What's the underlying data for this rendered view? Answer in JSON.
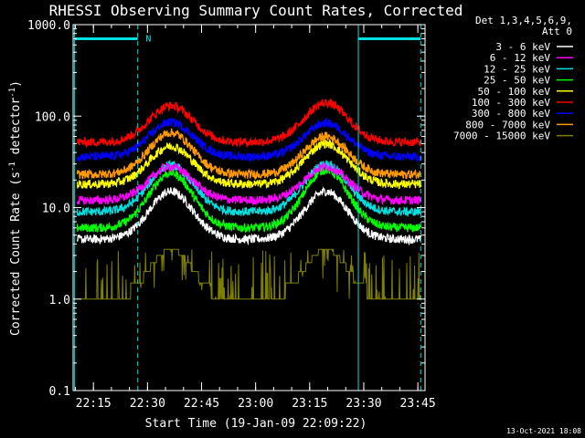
{
  "chart_data": {
    "type": "line",
    "title": "RHESSI Observing Summary Count Rates, Corrected",
    "xlabel": "Start Time (19-Jan-09 22:09:22)",
    "ylabel_main": "Corrected Count Rate (s",
    "ylabel_exp1": "-1",
    "ylabel_mid": " detector",
    "ylabel_exp2": "-1",
    "ylabel_end": ")",
    "x_units": "minutes from 22:00 UT",
    "xlim": [
      9.37,
      107
    ],
    "ylim": [
      0.1,
      1000
    ],
    "y_scale": "log",
    "x_ticks": [
      {
        "value": 15,
        "label": "22:15"
      },
      {
        "value": 30,
        "label": "22:30"
      },
      {
        "value": 45,
        "label": "22:45"
      },
      {
        "value": 60,
        "label": "23:00"
      },
      {
        "value": 75,
        "label": "23:15"
      },
      {
        "value": 90,
        "label": "23:30"
      },
      {
        "value": 105,
        "label": "23:45"
      }
    ],
    "y_ticks": [
      {
        "value": 0.1,
        "label": "0.1"
      },
      {
        "value": 1,
        "label": "1.0"
      },
      {
        "value": 10,
        "label": "10.0"
      },
      {
        "value": 100,
        "label": "100.0"
      },
      {
        "value": 1000,
        "label": "1000.0"
      }
    ],
    "legend_header": [
      "Det 1,3,4,5,6,9,",
      "Att 0"
    ],
    "legend_position": "right",
    "night_markers": {
      "boundaries": [
        9.8,
        27.3,
        88.5,
        105.8
      ],
      "bars": [
        [
          9.8,
          27.3
        ],
        [
          88.5,
          105.8
        ]
      ],
      "bar_level": 700,
      "label": "N",
      "label_x": 29.5
    },
    "series": [
      {
        "name": "3 - 6 keV",
        "color": "#ffffff",
        "base": 4.5,
        "peak1": 15,
        "peak2": 15
      },
      {
        "name": "6 - 12 keV",
        "color": "#ff00ff",
        "base": 12,
        "peak1": 28,
        "peak2": 28
      },
      {
        "name": "12 - 25 keV",
        "color": "#00e0e0",
        "base": 9,
        "peak1": 29,
        "peak2": 30
      },
      {
        "name": "25 - 50 keV",
        "color": "#00ff00",
        "base": 6,
        "peak1": 24,
        "peak2": 26
      },
      {
        "name": "50 - 100 keV",
        "color": "#ffff00",
        "base": 18,
        "peak1": 47,
        "peak2": 50
      },
      {
        "name": "100 - 300 keV",
        "color": "#ff0000",
        "base": 52,
        "peak1": 130,
        "peak2": 140
      },
      {
        "name": "300 - 800 keV",
        "color": "#0000ff",
        "base": 36,
        "peak1": 86,
        "peak2": 84
      },
      {
        "name": "800 - 7000 keV",
        "color": "#ff9900",
        "base": 23,
        "peak1": 66,
        "peak2": 60
      },
      {
        "name": "7000 - 15000 keV",
        "color": "#808000",
        "base": 1,
        "peak1": 3.5,
        "peak2": 3.5
      }
    ],
    "peak_times": [
      36.5,
      79.5
    ],
    "peak_width_min": 8.5,
    "data_start": 10.5,
    "data_end": 106
  },
  "footer_date": "13-Oct-2021 18:08"
}
